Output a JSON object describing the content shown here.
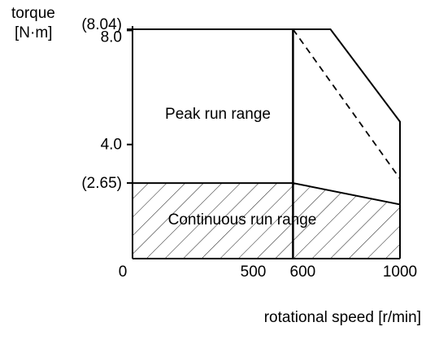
{
  "chart_data": {
    "type": "area",
    "title": "",
    "ylabel_line1": "torque",
    "ylabel_line2": "[N·m]",
    "xlabel": "rotational speed [r/min]",
    "xlim": [
      0,
      1000
    ],
    "ylim": [
      0,
      8.04
    ],
    "x_ticks": [
      {
        "value": 0,
        "label": "0"
      },
      {
        "value": 500,
        "label": "500"
      },
      {
        "value": 600,
        "label": "600"
      },
      {
        "value": 1000,
        "label": "1000"
      }
    ],
    "y_ticks": [
      {
        "value": 8.04,
        "label": "(8.04)"
      },
      {
        "value": 8.0,
        "label": "8.0"
      },
      {
        "value": 4.0,
        "label": "4.0"
      },
      {
        "value": 2.65,
        "label": "(2.65)"
      }
    ],
    "regions": [
      {
        "name": "Peak run range",
        "boundary": [
          [
            0,
            8.04
          ],
          [
            740,
            8.04
          ],
          [
            1000,
            4.8
          ],
          [
            1000,
            0
          ]
        ]
      },
      {
        "name": "Continuous run range",
        "boundary": [
          [
            0,
            2.65
          ],
          [
            600,
            2.65
          ],
          [
            1000,
            1.9
          ],
          [
            1000,
            0
          ]
        ],
        "hatched": true
      }
    ],
    "dashed_line": [
      [
        600,
        8.04
      ],
      [
        1000,
        2.8
      ]
    ],
    "vertical_line_x": 600
  }
}
